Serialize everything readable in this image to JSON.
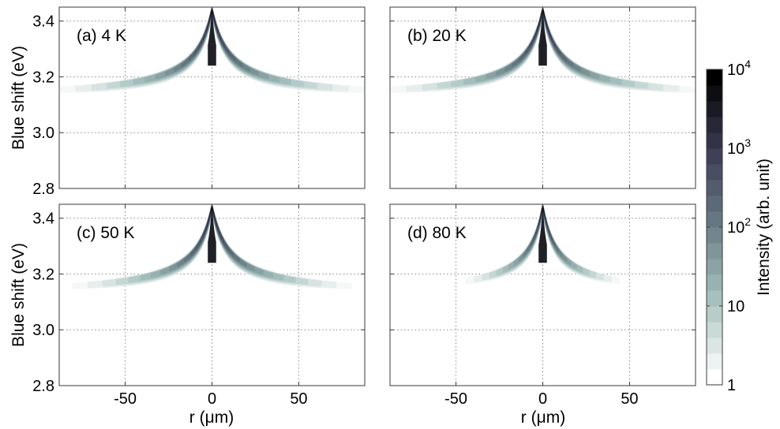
{
  "chart_data": [
    {
      "type": "heatmap",
      "panel_label": "(a) 4 K",
      "temperature_K": 4,
      "ylabel": "Blue shift (eV)",
      "xlabel": "",
      "xlim": [
        -88,
        88
      ],
      "ylim": [
        2.8,
        3.45
      ],
      "x_ticks": [
        -50,
        0,
        50
      ],
      "y_ticks": [
        2.8,
        3.0,
        3.2,
        3.4
      ],
      "y_tick_labels": [
        "2.8",
        "3.0",
        "3.2",
        "3.4"
      ],
      "show_x_tick_labels": false,
      "show_y_tick_labels": true,
      "grid": true,
      "intensity_model": {
        "peak_energy_eV": 3.45,
        "baseline_energy_eV": 3.12,
        "wing_extent_um": 88,
        "wing_falloff_um": 9
      }
    },
    {
      "type": "heatmap",
      "panel_label": "(b) 20 K",
      "temperature_K": 20,
      "ylabel": "",
      "xlabel": "",
      "xlim": [
        -88,
        88
      ],
      "ylim": [
        2.8,
        3.45
      ],
      "x_ticks": [
        -50,
        0,
        50
      ],
      "y_ticks": [
        2.8,
        3.0,
        3.2,
        3.4
      ],
      "show_x_tick_labels": false,
      "show_y_tick_labels": false,
      "grid": true,
      "intensity_model": {
        "peak_energy_eV": 3.45,
        "baseline_energy_eV": 3.12,
        "wing_extent_um": 88,
        "wing_falloff_um": 9
      }
    },
    {
      "type": "heatmap",
      "panel_label": "(c) 50 K",
      "temperature_K": 50,
      "ylabel": "Blue shift (eV)",
      "xlabel": "r (μm)",
      "xlim": [
        -88,
        88
      ],
      "ylim": [
        2.8,
        3.45
      ],
      "x_ticks": [
        -50,
        0,
        50
      ],
      "x_tick_labels": [
        "-50",
        "0",
        "50"
      ],
      "y_ticks": [
        2.8,
        3.0,
        3.2,
        3.4
      ],
      "y_tick_labels": [
        "2.8",
        "3.0",
        "3.2",
        "3.4"
      ],
      "show_x_tick_labels": true,
      "show_y_tick_labels": true,
      "grid": true,
      "intensity_model": {
        "peak_energy_eV": 3.45,
        "baseline_energy_eV": 3.12,
        "wing_extent_um": 80,
        "wing_falloff_um": 9
      }
    },
    {
      "type": "heatmap",
      "panel_label": "(d) 80 K",
      "temperature_K": 80,
      "ylabel": "",
      "xlabel": "r (μm)",
      "xlim": [
        -88,
        88
      ],
      "ylim": [
        2.8,
        3.45
      ],
      "x_ticks": [
        -50,
        0,
        50
      ],
      "x_tick_labels": [
        "-50",
        "0",
        "50"
      ],
      "y_ticks": [
        2.8,
        3.0,
        3.2,
        3.4
      ],
      "show_x_tick_labels": true,
      "show_y_tick_labels": false,
      "grid": true,
      "intensity_model": {
        "peak_energy_eV": 3.45,
        "baseline_energy_eV": 3.12,
        "wing_extent_um": 44,
        "wing_falloff_um": 8
      }
    }
  ],
  "colorbar": {
    "label": "Intensity (arb. unit)",
    "scale": "log",
    "range": [
      1,
      10000
    ],
    "levels": 20,
    "ticks": [
      {
        "value": 1,
        "base": "1",
        "exp": ""
      },
      {
        "value": 10,
        "base": "10",
        "exp": ""
      },
      {
        "value": 100,
        "base": "10",
        "exp": "2"
      },
      {
        "value": 1000,
        "base": "10",
        "exp": "3"
      },
      {
        "value": 10000,
        "base": "10",
        "exp": "4"
      }
    ],
    "colormap": [
      "#ffffff",
      "#a9c4c0",
      "#6a7f87",
      "#3d3d55",
      "#000000"
    ]
  }
}
